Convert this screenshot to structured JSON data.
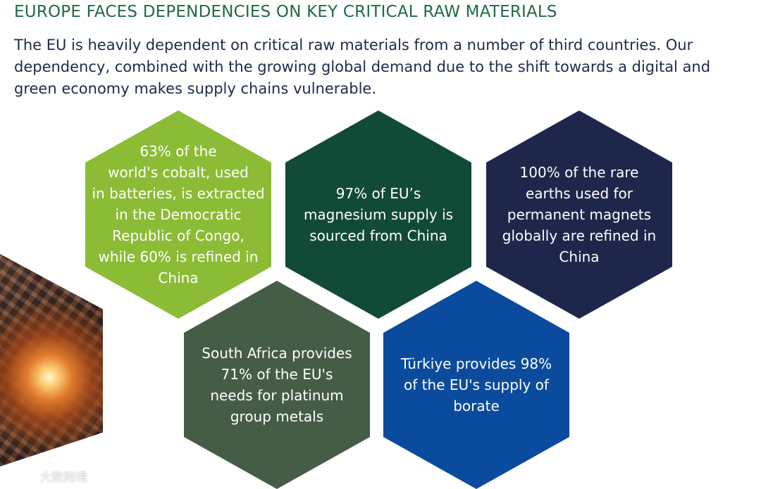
{
  "header": {
    "title": "EUROPE FACES DEPENDENCIES ON KEY CRITICAL RAW MATERIALS",
    "intro": "The EU is heavily dependent on critical raw materials from a number of third countries. Our dependency, combined with the growing global demand due to the shift towards a digital and green economy makes supply chains vulnerable."
  },
  "hexagons": [
    {
      "name": "cobalt",
      "color": "#8cbb36",
      "lines": [
        "63% of the",
        "world's cobalt, used",
        "in batteries, is extracted",
        "in the Democratic",
        "Republic of Congo,",
        "while 60% is refined in",
        "China"
      ]
    },
    {
      "name": "magnesium",
      "color": "#114a36",
      "lines": [
        "97% of EU’s",
        "magnesium supply is",
        "sourced from China"
      ]
    },
    {
      "name": "rare-earths",
      "color": "#1e274b",
      "lines": [
        "100% of the rare",
        "earths used for",
        "permanent magnets",
        "globally are refined in",
        "China"
      ]
    },
    {
      "name": "platinum",
      "color": "#455c46",
      "lines": [
        "South Africa provides",
        "71% of the EU's",
        "needs for platinum",
        "group metals"
      ]
    },
    {
      "name": "borate",
      "color": "#0a4b9d",
      "lines": [
        "Türkiye provides 98%",
        "of the EU's supply of",
        "borate"
      ]
    }
  ],
  "watermark": {
    "text": "大数跨境",
    "icon": "logo-icon"
  },
  "colors": {
    "title": "#1f6b43",
    "body_text": "#1e2a4c"
  }
}
